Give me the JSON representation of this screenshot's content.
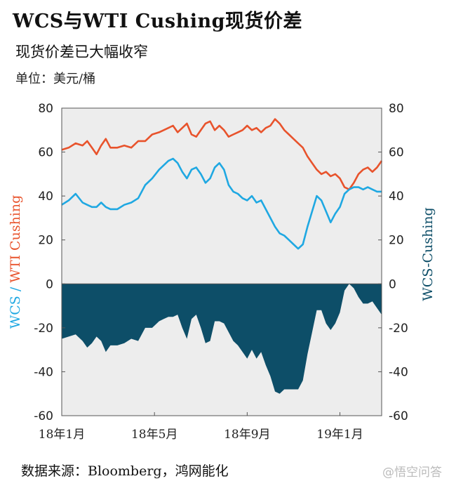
{
  "chart_data": {
    "type": "line",
    "title": "WCS与WTI Cushing现货价差",
    "subtitle": "现货价差已大幅收窄",
    "unit": "单位：美元/桶",
    "source": "数据来源：Bloomberg，鸿网能化",
    "watermark": "@悟空问答",
    "ylabel_left_parts": [
      "WCS",
      " / ",
      "WTI Cushing"
    ],
    "ylabel_right": "WCS-Cushing",
    "ylim": [
      -60,
      80
    ],
    "yticks": [
      -60,
      -40,
      -20,
      0,
      20,
      40,
      60,
      80
    ],
    "x_tick_labels": [
      "18年1月",
      "18年5月",
      "18年9月",
      "19年1月"
    ],
    "x_ticks": [
      0,
      4,
      8,
      12
    ],
    "x_range": [
      0,
      13.8
    ],
    "grid": false,
    "colors": {
      "wti": "#e8532c",
      "wcs": "#1fa8e2",
      "spread": "#0d4e68",
      "plot_bg": "#ededed"
    },
    "series": [
      {
        "name": "WTI Cushing",
        "style": "line",
        "x": [
          0,
          0.3,
          0.6,
          0.9,
          1.1,
          1.3,
          1.5,
          1.7,
          1.9,
          2.1,
          2.4,
          2.7,
          3.0,
          3.3,
          3.6,
          3.9,
          4.2,
          4.4,
          4.6,
          4.8,
          5.0,
          5.2,
          5.4,
          5.6,
          5.8,
          6.0,
          6.2,
          6.4,
          6.6,
          6.8,
          7.0,
          7.2,
          7.4,
          7.6,
          7.8,
          8.0,
          8.2,
          8.4,
          8.6,
          8.8,
          9.0,
          9.2,
          9.4,
          9.6,
          9.8,
          10.0,
          10.2,
          10.4,
          10.6,
          10.8,
          11.0,
          11.2,
          11.4,
          11.6,
          11.8,
          12.0,
          12.2,
          12.4,
          12.6,
          12.8,
          13.0,
          13.2,
          13.4,
          13.6,
          13.8
        ],
        "values": [
          61,
          62,
          64,
          63,
          65,
          62,
          59,
          63,
          66,
          62,
          62,
          63,
          62,
          65,
          65,
          68,
          69,
          70,
          71,
          72,
          69,
          71,
          73,
          68,
          67,
          70,
          73,
          74,
          70,
          72,
          70,
          67,
          68,
          69,
          70,
          72,
          70,
          71,
          69,
          71,
          72,
          75,
          73,
          70,
          68,
          66,
          64,
          62,
          58,
          55,
          52,
          50,
          51,
          49,
          50,
          48,
          44,
          43,
          46,
          50,
          52,
          53,
          51,
          53,
          56
        ]
      },
      {
        "name": "WCS",
        "style": "line",
        "x": [
          0,
          0.3,
          0.6,
          0.9,
          1.1,
          1.3,
          1.5,
          1.7,
          1.9,
          2.1,
          2.4,
          2.7,
          3.0,
          3.3,
          3.6,
          3.9,
          4.2,
          4.4,
          4.6,
          4.8,
          5.0,
          5.2,
          5.4,
          5.6,
          5.8,
          6.0,
          6.2,
          6.4,
          6.6,
          6.8,
          7.0,
          7.2,
          7.4,
          7.6,
          7.8,
          8.0,
          8.2,
          8.4,
          8.6,
          8.8,
          9.0,
          9.2,
          9.4,
          9.6,
          9.8,
          10.0,
          10.2,
          10.4,
          10.6,
          10.8,
          11.0,
          11.2,
          11.4,
          11.6,
          11.8,
          12.0,
          12.2,
          12.4,
          12.6,
          12.8,
          13.0,
          13.2,
          13.4,
          13.6,
          13.8
        ],
        "values": [
          36,
          38,
          41,
          37,
          36,
          35,
          35,
          37,
          35,
          34,
          34,
          36,
          37,
          39,
          45,
          48,
          52,
          54,
          56,
          57,
          55,
          51,
          48,
          52,
          53,
          50,
          46,
          48,
          53,
          55,
          52,
          45,
          42,
          41,
          39,
          38,
          40,
          37,
          38,
          34,
          30,
          26,
          23,
          22,
          20,
          18,
          16,
          18,
          26,
          33,
          40,
          38,
          33,
          28,
          32,
          35,
          41,
          43,
          44,
          44,
          43,
          44,
          43,
          42,
          42
        ]
      },
      {
        "name": "WCS-Cushing",
        "style": "area",
        "x": [
          0,
          0.3,
          0.6,
          0.9,
          1.1,
          1.3,
          1.5,
          1.7,
          1.9,
          2.1,
          2.4,
          2.7,
          3.0,
          3.3,
          3.6,
          3.9,
          4.2,
          4.4,
          4.6,
          4.8,
          5.0,
          5.2,
          5.4,
          5.6,
          5.8,
          6.0,
          6.2,
          6.4,
          6.6,
          6.8,
          7.0,
          7.2,
          7.4,
          7.6,
          7.8,
          8.0,
          8.2,
          8.4,
          8.6,
          8.8,
          9.0,
          9.2,
          9.4,
          9.6,
          9.8,
          10.0,
          10.2,
          10.4,
          10.6,
          10.8,
          11.0,
          11.2,
          11.4,
          11.6,
          11.8,
          12.0,
          12.2,
          12.4,
          12.6,
          12.8,
          13.0,
          13.2,
          13.4,
          13.6,
          13.8
        ],
        "values": [
          -25,
          -24,
          -23,
          -26,
          -29,
          -27,
          -24,
          -26,
          -31,
          -28,
          -28,
          -27,
          -25,
          -26,
          -20,
          -20,
          -17,
          -16,
          -15,
          -15,
          -14,
          -20,
          -25,
          -16,
          -14,
          -20,
          -27,
          -26,
          -17,
          -17,
          -18,
          -22,
          -26,
          -28,
          -31,
          -34,
          -30,
          -34,
          -31,
          -37,
          -42,
          -49,
          -50,
          -48,
          -48,
          -48,
          -48,
          -44,
          -32,
          -22,
          -12,
          -12,
          -18,
          -21,
          -18,
          -13,
          -3,
          0,
          -2,
          -6,
          -9,
          -9,
          -8,
          -11,
          -14
        ]
      }
    ]
  }
}
